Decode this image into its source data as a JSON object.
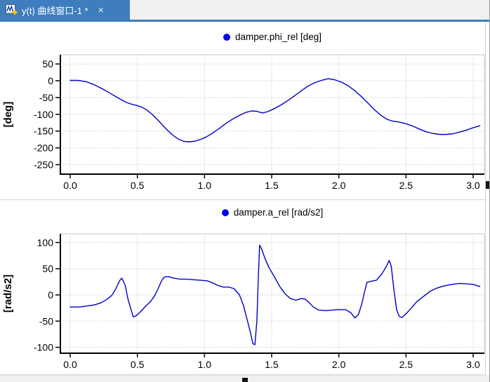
{
  "tab": {
    "title": "y(t) 曲线窗口-1 *",
    "close_glyph": "×"
  },
  "colors": {
    "tab_blue": "#3e7dbe",
    "curve": "#0000c8",
    "legend_dot": "#0000ee",
    "grid": "#b4b4b4",
    "axis": "#000000",
    "frame_gray": "#c4c4c4"
  },
  "chart_data": [
    {
      "type": "line",
      "title": "damper.phi_rel [deg]",
      "ylabel": "[deg]",
      "xlabel": "",
      "legend": [
        {
          "label": "damper.phi_rel [deg]",
          "marker": "circle",
          "color": "#0000ee"
        }
      ],
      "grid": true,
      "x_ticks": [
        0.0,
        0.5,
        1.0,
        1.5,
        2.0,
        2.5,
        3.0
      ],
      "x_tick_labels": [
        "0.0",
        "0.5",
        "1.0",
        "1.5",
        "2.0",
        "2.5",
        "3.0"
      ],
      "y_ticks": [
        50,
        0,
        -50,
        -100,
        -150,
        -200,
        -250
      ],
      "y_tick_labels": [
        "50",
        "0",
        "-50",
        "-100",
        "-150",
        "-200",
        "-250"
      ],
      "xlim": [
        -0.07,
        3.08
      ],
      "ylim": [
        -278,
        78
      ],
      "series": [
        {
          "name": "damper.phi_rel",
          "points": [
            [
              0,
              1
            ],
            [
              0.06,
              1
            ],
            [
              0.12,
              -3
            ],
            [
              0.18,
              -12
            ],
            [
              0.24,
              -24
            ],
            [
              0.3,
              -38
            ],
            [
              0.36,
              -52
            ],
            [
              0.41,
              -63
            ],
            [
              0.45,
              -69
            ],
            [
              0.49,
              -73
            ],
            [
              0.53,
              -78
            ],
            [
              0.57,
              -87
            ],
            [
              0.61,
              -100
            ],
            [
              0.65,
              -116
            ],
            [
              0.69,
              -133
            ],
            [
              0.73,
              -150
            ],
            [
              0.77,
              -164
            ],
            [
              0.81,
              -175
            ],
            [
              0.85,
              -181
            ],
            [
              0.89,
              -182
            ],
            [
              0.93,
              -180
            ],
            [
              0.97,
              -175
            ],
            [
              1.01,
              -168
            ],
            [
              1.06,
              -156
            ],
            [
              1.11,
              -142
            ],
            [
              1.16,
              -127
            ],
            [
              1.21,
              -114
            ],
            [
              1.26,
              -103
            ],
            [
              1.31,
              -94
            ],
            [
              1.35,
              -90
            ],
            [
              1.39,
              -91
            ],
            [
              1.43,
              -96
            ],
            [
              1.47,
              -92
            ],
            [
              1.52,
              -83
            ],
            [
              1.57,
              -72
            ],
            [
              1.62,
              -59
            ],
            [
              1.67,
              -45
            ],
            [
              1.72,
              -30
            ],
            [
              1.77,
              -16
            ],
            [
              1.82,
              -6
            ],
            [
              1.87,
              1
            ],
            [
              1.92,
              6
            ],
            [
              1.97,
              3
            ],
            [
              2.02,
              -4
            ],
            [
              2.07,
              -15
            ],
            [
              2.12,
              -30
            ],
            [
              2.17,
              -48
            ],
            [
              2.22,
              -68
            ],
            [
              2.27,
              -88
            ],
            [
              2.32,
              -105
            ],
            [
              2.36,
              -115
            ],
            [
              2.4,
              -120
            ],
            [
              2.45,
              -123
            ],
            [
              2.5,
              -128
            ],
            [
              2.55,
              -135
            ],
            [
              2.6,
              -144
            ],
            [
              2.65,
              -152
            ],
            [
              2.7,
              -157
            ],
            [
              2.75,
              -160
            ],
            [
              2.8,
              -160
            ],
            [
              2.85,
              -158
            ],
            [
              2.9,
              -153
            ],
            [
              2.95,
              -147
            ],
            [
              3.0,
              -140
            ],
            [
              3.05,
              -134
            ]
          ]
        }
      ]
    },
    {
      "type": "line",
      "title": "damper.a_rel [rad/s2]",
      "ylabel": "[rad/s2]",
      "xlabel": "",
      "legend": [
        {
          "label": "damper.a_rel [rad/s2]",
          "marker": "circle",
          "color": "#0000ee"
        }
      ],
      "grid": true,
      "x_ticks": [
        0.0,
        0.5,
        1.0,
        1.5,
        2.0,
        2.5,
        3.0
      ],
      "x_tick_labels": [
        "0.0",
        "0.5",
        "1.0",
        "1.5",
        "2.0",
        "2.5",
        "3.0"
      ],
      "y_ticks": [
        100,
        50,
        0,
        -50,
        -100
      ],
      "y_tick_labels": [
        "100",
        "50",
        "0",
        "-50",
        "-100"
      ],
      "xlim": [
        -0.07,
        3.08
      ],
      "ylim": [
        -111,
        117
      ],
      "series": [
        {
          "name": "damper.a_rel",
          "points": [
            [
              0,
              -23
            ],
            [
              0.07,
              -23
            ],
            [
              0.13,
              -21
            ],
            [
              0.18,
              -19
            ],
            [
              0.23,
              -15
            ],
            [
              0.27,
              -9
            ],
            [
              0.31,
              -1
            ],
            [
              0.34,
              12
            ],
            [
              0.37,
              28
            ],
            [
              0.385,
              32
            ],
            [
              0.41,
              18
            ],
            [
              0.43,
              -8
            ],
            [
              0.455,
              -30
            ],
            [
              0.47,
              -42
            ],
            [
              0.49,
              -40
            ],
            [
              0.52,
              -33
            ],
            [
              0.56,
              -22
            ],
            [
              0.6,
              -12
            ],
            [
              0.63,
              -1
            ],
            [
              0.655,
              12
            ],
            [
              0.68,
              27
            ],
            [
              0.7,
              34
            ],
            [
              0.73,
              35
            ],
            [
              0.77,
              32
            ],
            [
              0.82,
              30
            ],
            [
              0.87,
              30
            ],
            [
              0.92,
              29
            ],
            [
              0.97,
              28
            ],
            [
              1.02,
              27
            ],
            [
              1.06,
              23
            ],
            [
              1.1,
              18
            ],
            [
              1.14,
              15
            ],
            [
              1.18,
              15
            ],
            [
              1.22,
              12
            ],
            [
              1.26,
              0
            ],
            [
              1.29,
              -20
            ],
            [
              1.32,
              -50
            ],
            [
              1.345,
              -75
            ],
            [
              1.36,
              -93
            ],
            [
              1.375,
              -95
            ],
            [
              1.39,
              -50
            ],
            [
              1.4,
              30
            ],
            [
              1.41,
              95
            ],
            [
              1.425,
              88
            ],
            [
              1.45,
              70
            ],
            [
              1.48,
              52
            ],
            [
              1.52,
              35
            ],
            [
              1.56,
              16
            ],
            [
              1.6,
              2
            ],
            [
              1.64,
              -7
            ],
            [
              1.68,
              -10
            ],
            [
              1.72,
              -7
            ],
            [
              1.75,
              -8
            ],
            [
              1.78,
              -15
            ],
            [
              1.81,
              -23
            ],
            [
              1.85,
              -29
            ],
            [
              1.9,
              -30
            ],
            [
              1.95,
              -29
            ],
            [
              2.0,
              -28
            ],
            [
              2.05,
              -28
            ],
            [
              2.09,
              -34
            ],
            [
              2.12,
              -44
            ],
            [
              2.145,
              -38
            ],
            [
              2.17,
              -18
            ],
            [
              2.195,
              10
            ],
            [
              2.21,
              24
            ],
            [
              2.24,
              26
            ],
            [
              2.28,
              28
            ],
            [
              2.32,
              40
            ],
            [
              2.355,
              55
            ],
            [
              2.375,
              66
            ],
            [
              2.39,
              55
            ],
            [
              2.41,
              10
            ],
            [
              2.43,
              -28
            ],
            [
              2.45,
              -41
            ],
            [
              2.47,
              -43
            ],
            [
              2.5,
              -36
            ],
            [
              2.54,
              -25
            ],
            [
              2.58,
              -13
            ],
            [
              2.63,
              -3
            ],
            [
              2.68,
              7
            ],
            [
              2.73,
              13
            ],
            [
              2.78,
              17
            ],
            [
              2.84,
              20
            ],
            [
              2.9,
              22
            ],
            [
              2.96,
              21
            ],
            [
              3.0,
              20
            ],
            [
              3.05,
              16
            ]
          ]
        }
      ]
    }
  ]
}
